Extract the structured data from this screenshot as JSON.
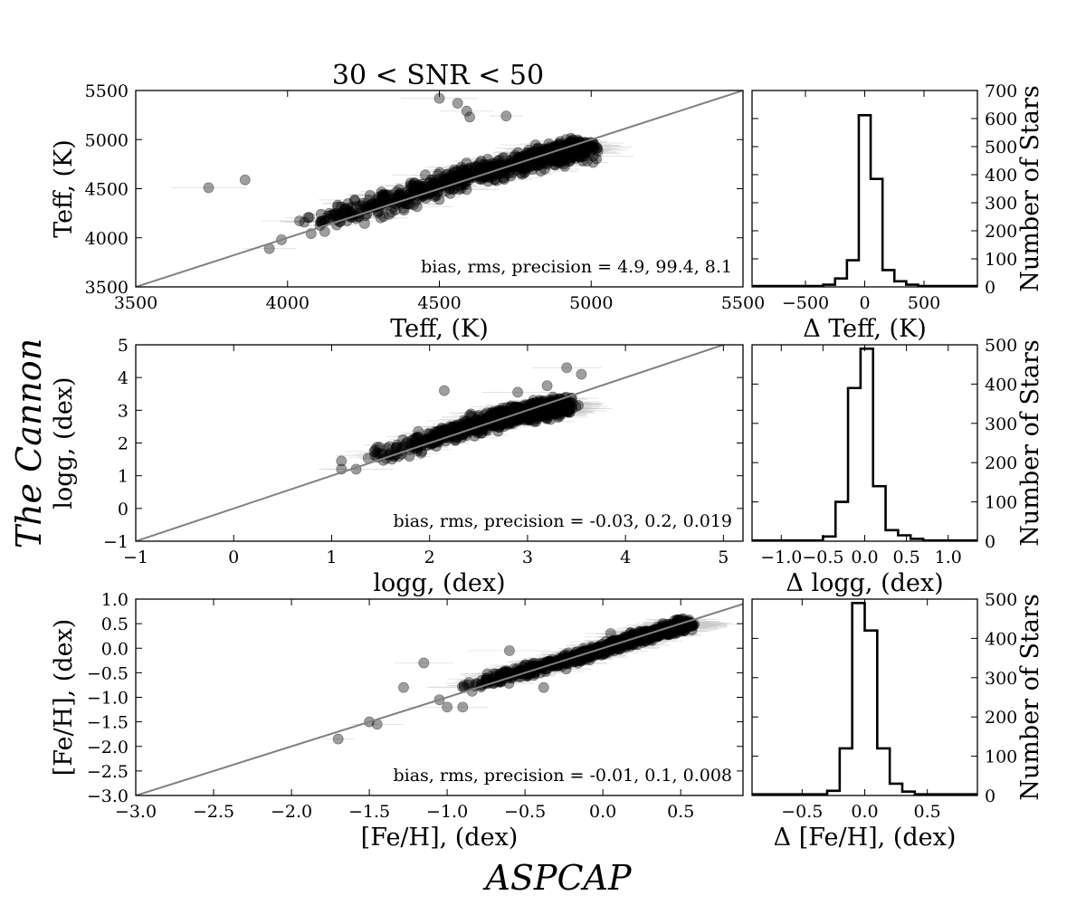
{
  "figure": {
    "title": "30 < SNR < 50",
    "ylabel": "The Cannon",
    "xlabel": "ASPCAP"
  },
  "chart_data": [
    {
      "type": "scatter",
      "id": "teff-scatter",
      "xlabel": "Teff, (K)",
      "ylabel": "Teff, (K)",
      "xlim": [
        3500,
        5500
      ],
      "ylim": [
        3500,
        5500
      ],
      "xticks": [
        "3500",
        "4000",
        "4500",
        "5000",
        "5500"
      ],
      "yticks": [
        "3500",
        "4000",
        "4500",
        "5000",
        "5500"
      ],
      "one_to_one_line": true,
      "annotation": "bias, rms, precision = 4.9, 99.4, 8.1",
      "series": [
        {
          "trend_x": [
            4050,
            4300,
            4550,
            4800,
            5000
          ],
          "trend_y": [
            4120,
            4330,
            4590,
            4800,
            4920
          ],
          "cloud_spread": 90,
          "outliers": [
            [
              3740,
              4510
            ],
            [
              3860,
              4590
            ],
            [
              3940,
              3890
            ],
            [
              3980,
              3980
            ],
            [
              4500,
              5420
            ],
            [
              4560,
              5370
            ],
            [
              4590,
              5290
            ],
            [
              4600,
              5230
            ],
            [
              4720,
              5240
            ]
          ]
        }
      ]
    },
    {
      "type": "bar",
      "id": "teff-hist",
      "xlabel": "Δ Teff, (K)",
      "ylabel": "Number of Stars",
      "xlim": [
        -950,
        950
      ],
      "ylim": [
        0,
        700
      ],
      "xticks": [
        "−500",
        "0",
        "500"
      ],
      "yticks": [
        "0",
        "100",
        "200",
        "300",
        "400",
        "500",
        "600",
        "700"
      ],
      "bin_edges": [
        -950,
        -350,
        -250,
        -150,
        -50,
        50,
        150,
        250,
        350,
        450,
        950
      ],
      "values": [
        3,
        8,
        30,
        95,
        612,
        385,
        60,
        20,
        8,
        3
      ]
    },
    {
      "type": "scatter",
      "id": "logg-scatter",
      "xlabel": "logg, (dex)",
      "ylabel": "logg, (dex)",
      "xlim": [
        -1,
        5.2
      ],
      "ylim": [
        -1,
        5
      ],
      "xticks": [
        "−1",
        "0",
        "1",
        "2",
        "3",
        "4",
        "5"
      ],
      "yticks": [
        "−1",
        "0",
        "1",
        "2",
        "3",
        "4",
        "5"
      ],
      "one_to_one_line": true,
      "annotation": "bias, rms, precision = -0.03, 0.2, 0.019",
      "series": [
        {
          "trend_x": [
            1.4,
            2.0,
            2.6,
            3.0,
            3.4
          ],
          "trend_y": [
            1.5,
            2.1,
            2.65,
            2.95,
            3.15
          ],
          "cloud_spread": 0.22,
          "outliers": [
            [
              1.1,
              1.2
            ],
            [
              1.1,
              1.45
            ],
            [
              1.25,
              1.2
            ],
            [
              2.15,
              3.6
            ],
            [
              3.4,
              4.3
            ],
            [
              3.55,
              4.1
            ],
            [
              2.9,
              3.55
            ],
            [
              3.2,
              3.75
            ]
          ]
        }
      ]
    },
    {
      "type": "bar",
      "id": "logg-hist",
      "xlabel": "Δ logg, (dex)",
      "ylabel": "Number of Stars",
      "xlim": [
        -1.35,
        1.35
      ],
      "ylim": [
        0,
        500
      ],
      "xticks": [
        "−1.0",
        "−0.5",
        "0.0",
        "0.5",
        "1.0"
      ],
      "yticks": [
        "0",
        "100",
        "200",
        "300",
        "400",
        "500"
      ],
      "bin_edges": [
        -1.35,
        -0.5,
        -0.35,
        -0.2,
        -0.05,
        0.1,
        0.25,
        0.4,
        0.55,
        0.7,
        1.35
      ],
      "values": [
        2,
        12,
        100,
        390,
        490,
        140,
        28,
        15,
        6,
        2
      ]
    },
    {
      "type": "scatter",
      "id": "feh-scatter",
      "xlabel": "[Fe/H], (dex)",
      "ylabel": "[Fe/H], (dex)",
      "xlim": [
        -3.0,
        0.9
      ],
      "ylim": [
        -3.0,
        1.0
      ],
      "xticks": [
        "−3.0",
        "−2.5",
        "−2.0",
        "−1.5",
        "−1.0",
        "−0.5",
        "0.0",
        "0.5"
      ],
      "yticks": [
        "−3.0",
        "−2.5",
        "−2.0",
        "−1.5",
        "−1.0",
        "−0.5",
        "0.0",
        "0.5",
        "1.0"
      ],
      "one_to_one_line": true,
      "annotation": "bias, rms, precision = -0.01, 0.1, 0.008",
      "series": [
        {
          "trend_x": [
            -0.9,
            -0.6,
            -0.3,
            0.0,
            0.3,
            0.55
          ],
          "trend_y": [
            -0.8,
            -0.55,
            -0.3,
            -0.02,
            0.28,
            0.5
          ],
          "cloud_spread": 0.09,
          "outliers": [
            [
              -1.7,
              -1.85
            ],
            [
              -1.5,
              -1.5
            ],
            [
              -1.45,
              -1.55
            ],
            [
              -1.28,
              -0.8
            ],
            [
              -1.15,
              -0.3
            ],
            [
              -1.05,
              -1.05
            ],
            [
              -1.0,
              -1.2
            ],
            [
              -0.9,
              -1.2
            ],
            [
              -0.6,
              -0.05
            ],
            [
              -0.38,
              -0.8
            ],
            [
              0.05,
              0.3
            ]
          ]
        }
      ]
    },
    {
      "type": "bar",
      "id": "feh-hist",
      "xlabel": "Δ [Fe/H], (dex)",
      "ylabel": "Number of Stars",
      "xlim": [
        -0.9,
        0.9
      ],
      "ylim": [
        0,
        500
      ],
      "xticks": [
        "−0.5",
        "0.0",
        "0.5"
      ],
      "yticks": [
        "0",
        "100",
        "200",
        "300",
        "400",
        "500"
      ],
      "bin_edges": [
        -0.9,
        -0.3,
        -0.2,
        -0.1,
        0.0,
        0.1,
        0.2,
        0.3,
        0.4,
        0.9
      ],
      "values": [
        3,
        12,
        120,
        490,
        420,
        120,
        30,
        10,
        3
      ]
    }
  ]
}
